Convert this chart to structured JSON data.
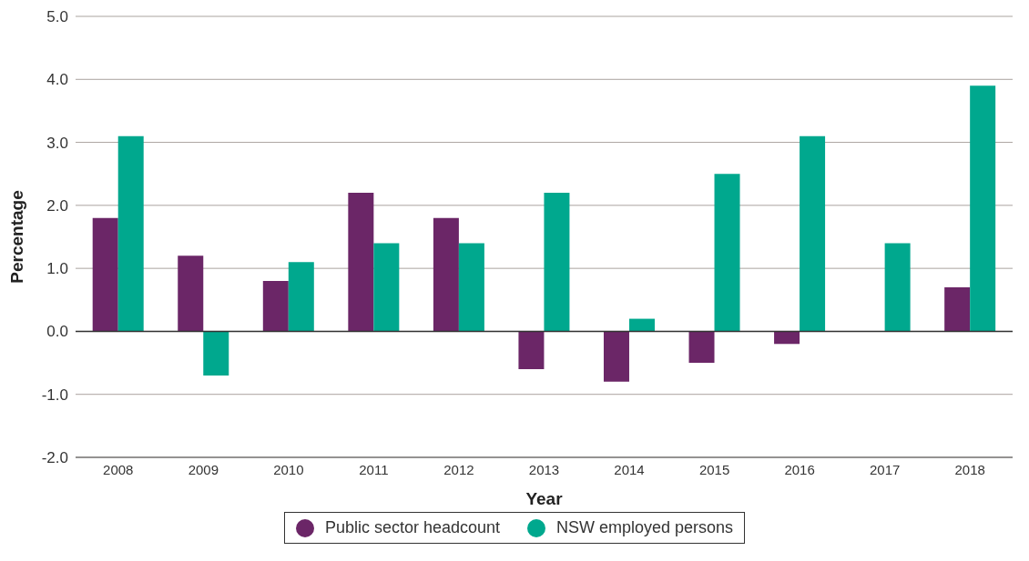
{
  "chart_data": {
    "type": "bar",
    "xlabel": "Year",
    "ylabel": "Percentage",
    "categories": [
      "2008",
      "2009",
      "2010",
      "2011",
      "2012",
      "2013",
      "2014",
      "2015",
      "2016",
      "2017",
      "2018"
    ],
    "series": [
      {
        "name": "Public sector headcount",
        "color": "#6b2667",
        "values": [
          1.8,
          1.2,
          0.8,
          2.2,
          1.8,
          -0.6,
          -0.8,
          -0.5,
          -0.2,
          null,
          0.7
        ]
      },
      {
        "name": "NSW employed persons",
        "color": "#00a88e",
        "values": [
          3.1,
          -0.7,
          1.1,
          1.4,
          1.4,
          2.2,
          0.2,
          2.5,
          3.1,
          1.4,
          3.9
        ]
      }
    ],
    "ylim": [
      -2,
      5
    ],
    "yticks": [
      {
        "value": -2,
        "label": "-2.0"
      },
      {
        "value": -1,
        "label": "-1.0"
      },
      {
        "value": 0,
        "label": "0.0"
      },
      {
        "value": 1,
        "label": "1.0"
      },
      {
        "value": 2,
        "label": "2.0"
      },
      {
        "value": 3,
        "label": "3.0"
      },
      {
        "value": 4,
        "label": "4.0"
      },
      {
        "value": 5,
        "label": "5.0"
      }
    ],
    "ref_lines": [
      {
        "axis": "y",
        "value": 0,
        "color": "#333333"
      }
    ],
    "grid": "y",
    "legend": "bottom"
  }
}
